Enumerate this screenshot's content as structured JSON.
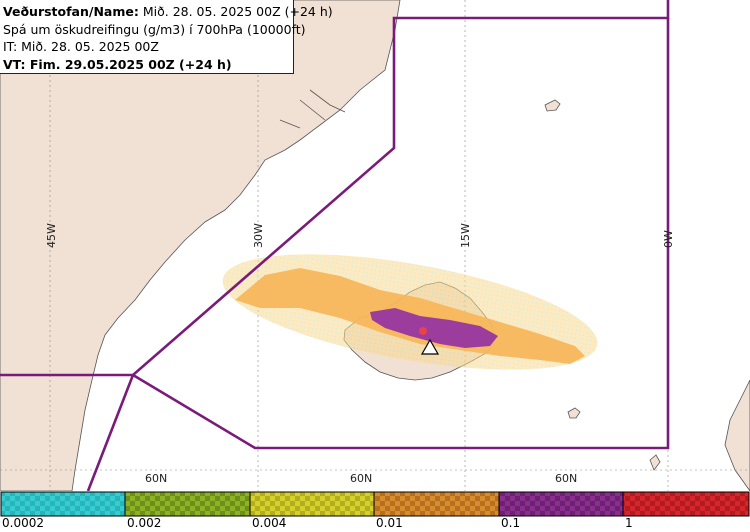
{
  "header": {
    "line1_label": "Veðurstofan/Name:",
    "line1_value": "Mið. 28. 05. 2025 00Z (+24 h)",
    "line2": "Spá um öskudreifingu (g/m3) í 700hPa (10000ft)",
    "line3": "IT: Mið. 28. 05. 2025 00Z",
    "line4": "VT: Fim. 29.05.2025 00Z (+24 h)"
  },
  "map": {
    "longitude_labels": [
      "45W",
      "30W",
      "15W",
      "0W"
    ],
    "latitude_labels": [
      "60N",
      "60N",
      "60N"
    ],
    "colors": {
      "sea": "#ffffff",
      "land": "#f1e0d4",
      "coast": "#555555",
      "boundary": "#7a1a7a",
      "grid": "#888888",
      "volcano": "#ffffff"
    }
  },
  "legend": {
    "tick_labels": [
      "0.0002",
      "0.002",
      "0.004",
      "0.01",
      "0.1",
      "1"
    ],
    "colors": [
      "#34cdd2",
      "#8db324",
      "#d6d12a",
      "#d98c2c",
      "#8a2e8f",
      "#d6252b"
    ]
  }
}
